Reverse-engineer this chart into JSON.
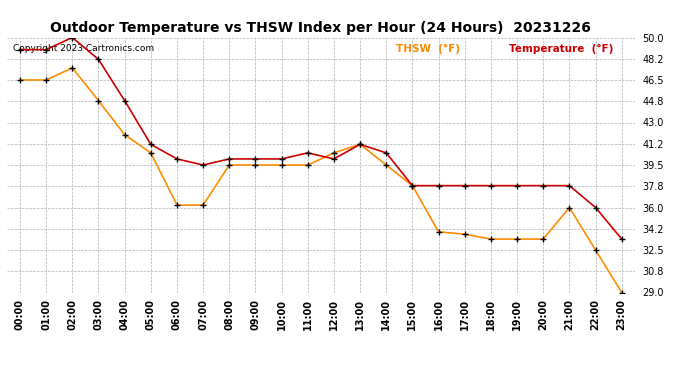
{
  "title": "Outdoor Temperature vs THSW Index per Hour (24 Hours)  20231226",
  "copyright": "Copyright 2023 Cartronics.com",
  "legend_thsw": "THSW  (°F)",
  "legend_temp": "Temperature  (°F)",
  "hours": [
    "00:00",
    "01:00",
    "02:00",
    "03:00",
    "04:00",
    "05:00",
    "06:00",
    "07:00",
    "08:00",
    "09:00",
    "10:00",
    "11:00",
    "12:00",
    "13:00",
    "14:00",
    "15:00",
    "16:00",
    "17:00",
    "18:00",
    "19:00",
    "20:00",
    "21:00",
    "22:00",
    "23:00"
  ],
  "temperature": [
    49.0,
    49.0,
    50.0,
    48.2,
    44.8,
    41.2,
    40.0,
    39.5,
    40.0,
    40.0,
    40.0,
    40.5,
    40.0,
    41.2,
    40.5,
    37.8,
    37.8,
    37.8,
    37.8,
    37.8,
    37.8,
    37.8,
    36.0,
    33.4
  ],
  "thsw": [
    46.5,
    46.5,
    47.5,
    44.8,
    42.0,
    40.5,
    36.2,
    36.2,
    39.5,
    39.5,
    39.5,
    39.5,
    40.5,
    41.2,
    39.5,
    37.8,
    34.0,
    33.8,
    33.4,
    33.4,
    33.4,
    36.0,
    32.5,
    29.0
  ],
  "temp_color": "#cc0000",
  "thsw_color": "#ff8c00",
  "marker_color": "#000000",
  "ylim_min": 29.0,
  "ylim_max": 50.0,
  "yticks": [
    29.0,
    30.8,
    32.5,
    34.2,
    36.0,
    37.8,
    39.5,
    41.2,
    43.0,
    44.8,
    46.5,
    48.2,
    50.0
  ],
  "bg_color": "#ffffff",
  "grid_color": "#b0b0b0",
  "title_fontsize": 10,
  "label_fontsize": 7,
  "tick_fontsize": 7,
  "copyright_fontsize": 6.5,
  "legend_fontsize": 7.5
}
